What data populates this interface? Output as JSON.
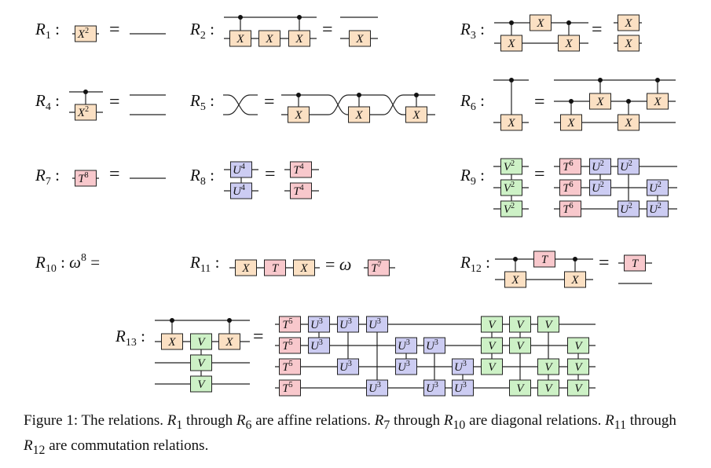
{
  "relations": {
    "r1": {
      "label": "R",
      "sub": "1",
      "sep": ":",
      "eq": "="
    },
    "r2": {
      "label": "R",
      "sub": "2",
      "sep": ":",
      "eq": "="
    },
    "r3": {
      "label": "R",
      "sub": "3",
      "sep": ":",
      "eq": "="
    },
    "r4": {
      "label": "R",
      "sub": "4",
      "sep": ":",
      "eq": "="
    },
    "r5": {
      "label": "R",
      "sub": "5",
      "sep": ":",
      "eq": "="
    },
    "r6": {
      "label": "R",
      "sub": "6",
      "sep": ":",
      "eq": "="
    },
    "r7": {
      "label": "R",
      "sub": "7",
      "sep": ":",
      "eq": "="
    },
    "r8": {
      "label": "R",
      "sub": "8",
      "sep": ":",
      "eq": "="
    },
    "r9": {
      "label": "R",
      "sub": "9",
      "sep": ":",
      "eq": "="
    },
    "r10": {
      "label": "R",
      "sub": "10",
      "sep": ":",
      "rhs_omega": "ω",
      "rhs_exp": "8",
      "eq": "="
    },
    "r11": {
      "label": "R",
      "sub": "11",
      "sep": ":",
      "eq": "=",
      "omega": "ω"
    },
    "r12": {
      "label": "R",
      "sub": "12",
      "sep": ":",
      "eq": "="
    },
    "r13": {
      "label": "R",
      "sub": "13",
      "sep": ":",
      "eq": "="
    }
  },
  "gates": {
    "X": "X",
    "T": "T",
    "U": "U",
    "V": "V",
    "exp2": "2",
    "exp3": "3",
    "exp4": "4",
    "exp5": "5",
    "exp6": "6",
    "exp7": "7",
    "exp8": "8"
  },
  "colors": {
    "X": "#fbe0c3",
    "T": "#f8c8cc",
    "U": "#ccccf2",
    "V": "#cdf1c6",
    "stroke": "#222222"
  },
  "caption": {
    "lead": "Figure 1: The relations. ",
    "r_a": "R",
    "r_a_sub": "1",
    "t1": " through ",
    "r_b": "R",
    "r_b_sub": "6",
    "t2": " are affine relations. ",
    "r_c": "R",
    "r_c_sub": "7",
    "t3": " through ",
    "r_d": "R",
    "r_d_sub": "10",
    "t4": " are diagonal relations. ",
    "r_e": "R",
    "r_e_sub": "11",
    "t5": " through ",
    "r_f": "R",
    "r_f_sub": "12",
    "t6": " are commutation relations."
  }
}
